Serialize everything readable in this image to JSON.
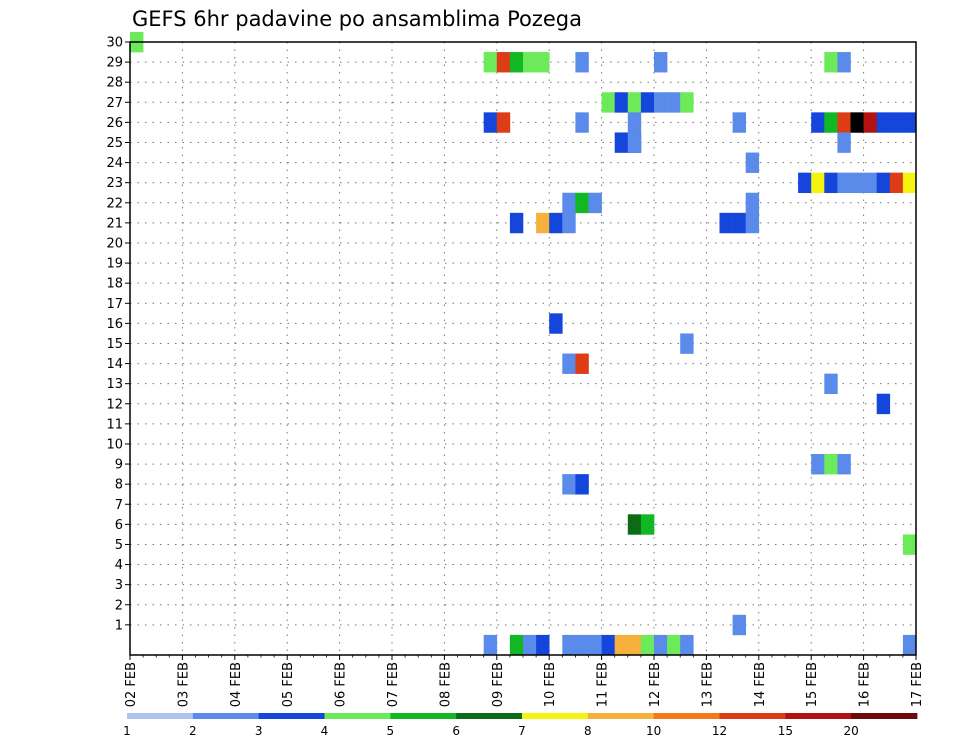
{
  "chart_data": {
    "type": "heatmap",
    "title": "GEFS 6hr padavine po ansamblima Pozega",
    "xlabel": "",
    "ylabel": "",
    "x_ticks": [
      "02 FEB",
      "03 FEB",
      "04 FEB",
      "05 FEB",
      "06 FEB",
      "07 FEB",
      "08 FEB",
      "09 FEB",
      "10 FEB",
      "11 FEB",
      "12 FEB",
      "13 FEB",
      "14 FEB",
      "15 FEB",
      "16 FEB",
      "17 FEB"
    ],
    "y_ticks": [
      "1",
      "2",
      "3",
      "4",
      "5",
      "6",
      "7",
      "8",
      "9",
      "10",
      "11",
      "12",
      "13",
      "14",
      "15",
      "16",
      "17",
      "18",
      "19",
      "20",
      "21",
      "22",
      "23",
      "24",
      "25",
      "26",
      "27",
      "28",
      "29",
      "30"
    ],
    "x_range_steps": [
      0,
      60
    ],
    "y_range": [
      0,
      30
    ],
    "x_step_hours": 6,
    "grid": "dotted",
    "legend": {
      "placement": "bottom",
      "labels": [
        "1",
        "2",
        "3",
        "4",
        "5",
        "6",
        "7",
        "8",
        "10",
        "12",
        "15",
        "20"
      ],
      "colors": [
        "#aec3f2",
        "#5b8bea",
        "#1446dc",
        "#6cea5a",
        "#12b824",
        "#0d6b16",
        "#f4f410",
        "#f6b13c",
        "#f37a1a",
        "#de3c16",
        "#b21212",
        "#6e0a0a"
      ]
    },
    "cells": [
      [
        0,
        30,
        3
      ],
      [
        27,
        29,
        3
      ],
      [
        28,
        29,
        9
      ],
      [
        29,
        29,
        4
      ],
      [
        30,
        29,
        3
      ],
      [
        31,
        29,
        3
      ],
      [
        34,
        29,
        1
      ],
      [
        40,
        29,
        1
      ],
      [
        53,
        29,
        3
      ],
      [
        54,
        29,
        1
      ],
      [
        36,
        27,
        3
      ],
      [
        37,
        27,
        2
      ],
      [
        38,
        27,
        3
      ],
      [
        39,
        27,
        2
      ],
      [
        40,
        27,
        1
      ],
      [
        41,
        27,
        1
      ],
      [
        42,
        27,
        3
      ],
      [
        27,
        26,
        2
      ],
      [
        28,
        26,
        9
      ],
      [
        34,
        26,
        1
      ],
      [
        38,
        26,
        1
      ],
      [
        46,
        26,
        1
      ],
      [
        52,
        26,
        2
      ],
      [
        53,
        26,
        4
      ],
      [
        54,
        26,
        9
      ],
      [
        55,
        26,
        12
      ],
      [
        56,
        26,
        10
      ],
      [
        57,
        26,
        2
      ],
      [
        58,
        26,
        2
      ],
      [
        59,
        26,
        2
      ],
      [
        37,
        25,
        2
      ],
      [
        38,
        25,
        2
      ],
      [
        38,
        25,
        1
      ],
      [
        54,
        25,
        1
      ],
      [
        47,
        24,
        1
      ],
      [
        51,
        23,
        2
      ],
      [
        52,
        23,
        6
      ],
      [
        53,
        23,
        2
      ],
      [
        54,
        23,
        1
      ],
      [
        55,
        23,
        1
      ],
      [
        56,
        23,
        1
      ],
      [
        57,
        23,
        2
      ],
      [
        58,
        23,
        9
      ],
      [
        59,
        23,
        6
      ],
      [
        33,
        22,
        1
      ],
      [
        34,
        22,
        4
      ],
      [
        35,
        22,
        1
      ],
      [
        47,
        22,
        1
      ],
      [
        29,
        21,
        2
      ],
      [
        31,
        21,
        7
      ],
      [
        32,
        21,
        2
      ],
      [
        33,
        21,
        1
      ],
      [
        45,
        21,
        2
      ],
      [
        46,
        21,
        2
      ],
      [
        47,
        21,
        1
      ],
      [
        32,
        16,
        2
      ],
      [
        42,
        15,
        1
      ],
      [
        33,
        14,
        1
      ],
      [
        34,
        14,
        9
      ],
      [
        53,
        13,
        1
      ],
      [
        57,
        12,
        2
      ],
      [
        52,
        9,
        1
      ],
      [
        53,
        9,
        3
      ],
      [
        54,
        9,
        1
      ],
      [
        33,
        8,
        1
      ],
      [
        34,
        8,
        2
      ],
      [
        38,
        6,
        5
      ],
      [
        39,
        6,
        4
      ],
      [
        59,
        5,
        3
      ],
      [
        46,
        1,
        1
      ],
      [
        27,
        0,
        1
      ],
      [
        29,
        0,
        4
      ],
      [
        30,
        0,
        1
      ],
      [
        31,
        0,
        2
      ],
      [
        33,
        0,
        1
      ],
      [
        34,
        0,
        1
      ],
      [
        35,
        0,
        1
      ],
      [
        36,
        0,
        2
      ],
      [
        37,
        0,
        7
      ],
      [
        38,
        0,
        7
      ],
      [
        39,
        0,
        3
      ],
      [
        40,
        0,
        1
      ],
      [
        41,
        0,
        3
      ],
      [
        42,
        0,
        1
      ],
      [
        59,
        0,
        1
      ]
    ]
  }
}
